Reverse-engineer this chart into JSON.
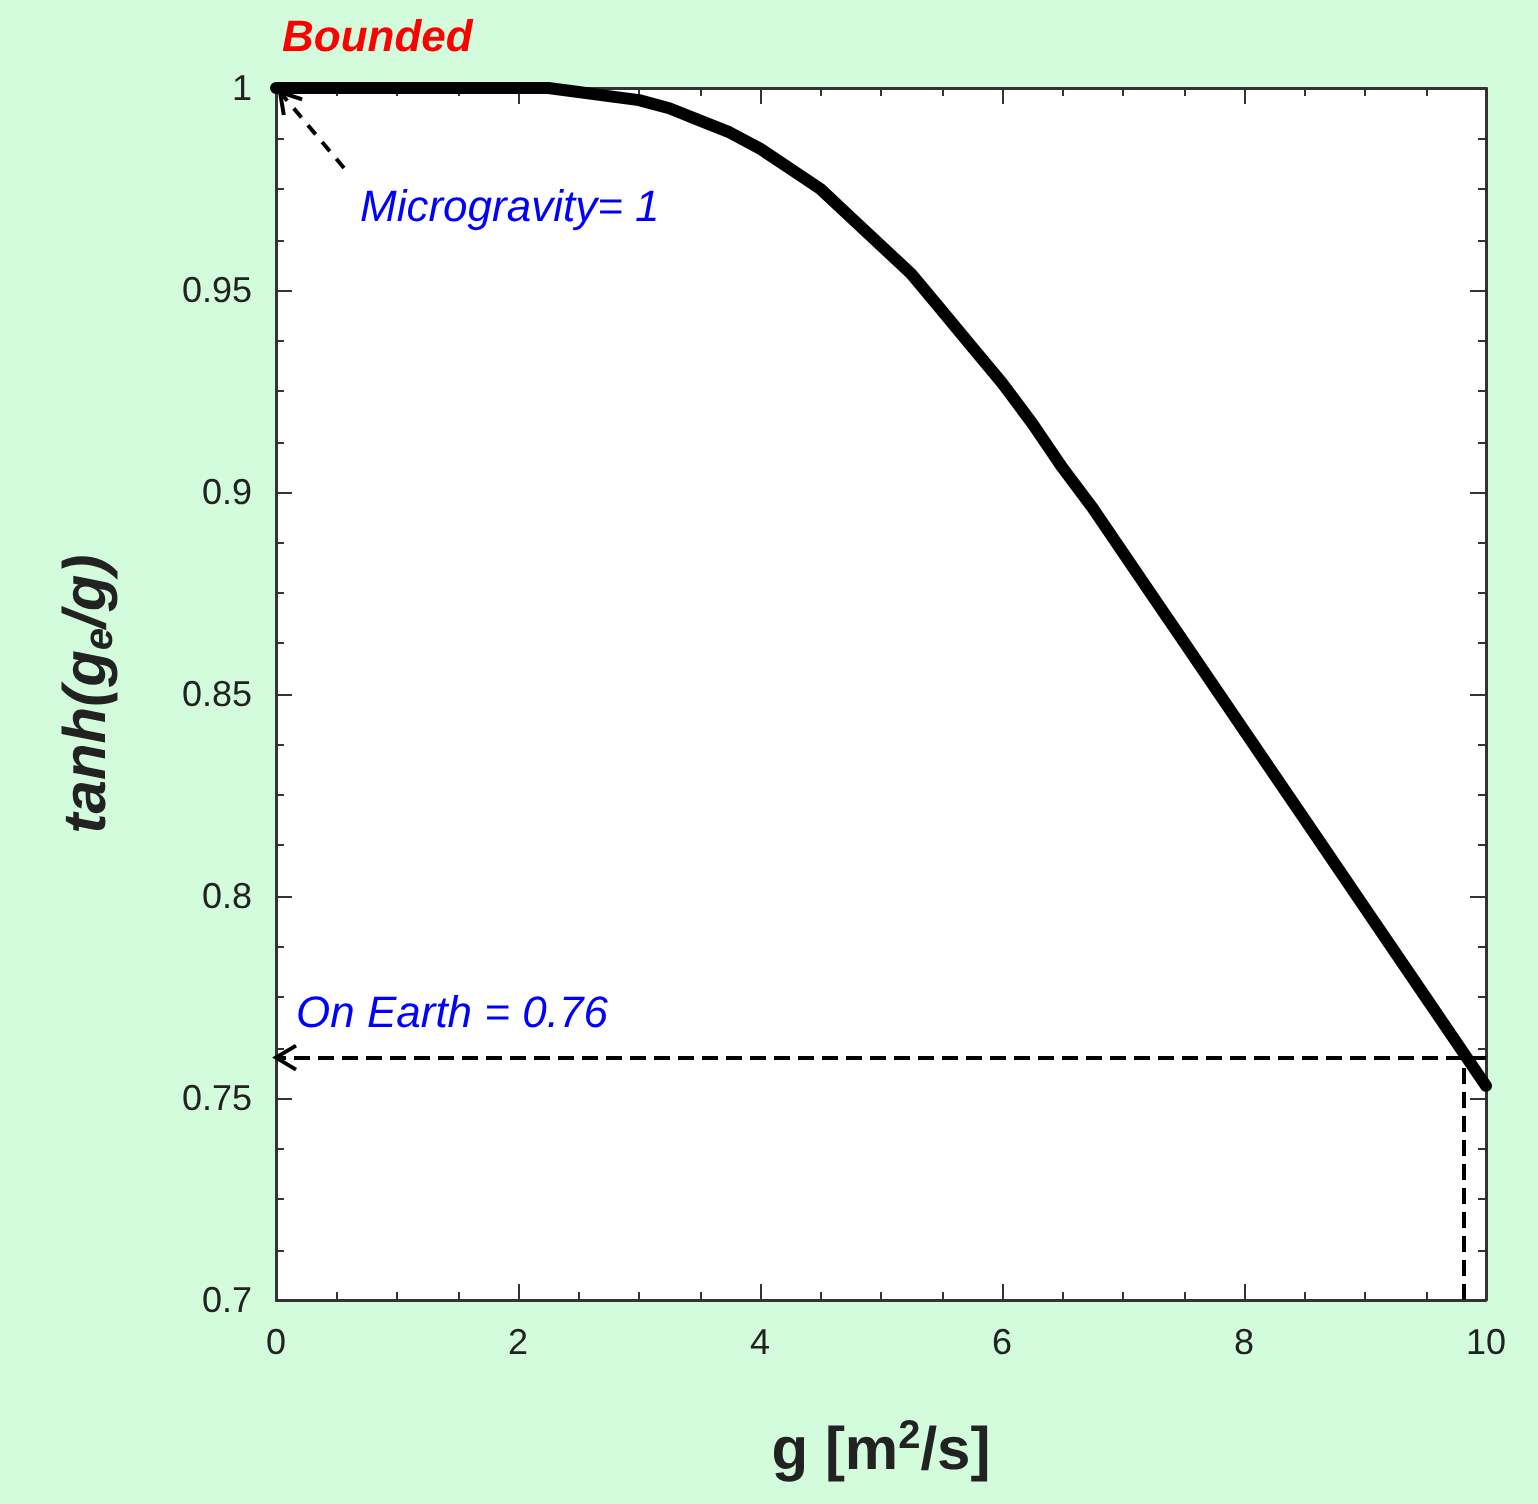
{
  "chart_data": {
    "type": "line",
    "title": "Bounded",
    "xlabel": "g [m$^{2}$/s]",
    "ylabel": "tanh(g$_{e}$/g)",
    "x": [
      0,
      0.5,
      1,
      1.5,
      2,
      2.25,
      2.5,
      2.75,
      3,
      3.25,
      3.5,
      3.75,
      4,
      4.25,
      4.5,
      4.75,
      5,
      5.25,
      5.5,
      5.75,
      6,
      6.25,
      6.5,
      6.75,
      7,
      7.25,
      7.5,
      8,
      8.5,
      9,
      9.5,
      10
    ],
    "series": [
      {
        "color": "#000000",
        "values": [
          1,
          1,
          1,
          1,
          1,
          1,
          0.999,
          0.998,
          0.997,
          0.995,
          0.992,
          0.989,
          0.985,
          0.98,
          0.975,
          0.968,
          0.961,
          0.954,
          0.945,
          0.936,
          0.927,
          0.917,
          0.906,
          0.896,
          0.885,
          0.874,
          0.863,
          0.841,
          0.819,
          0.797,
          0.775,
          0.753
        ]
      }
    ],
    "xlim": [
      0,
      10
    ],
    "xticks": [
      0,
      2,
      4,
      6,
      8,
      10
    ],
    "ylim": [
      0.7,
      1
    ],
    "yticks": [
      0.7,
      0.75,
      0.8,
      0.85,
      0.9,
      0.95,
      1
    ],
    "grid": false,
    "marker": "none",
    "line_style": "solid",
    "annotations": [
      {
        "text": "Microgravity= 1",
        "x": 0,
        "y": 1
      }
    ],
    "ref_lines": [
      {
        "axis": "y",
        "value": 0.76,
        "label": "On Earth = 0.76",
        "color": "#000000",
        "line_style": "dashed"
      },
      {
        "axis": "x",
        "value": 9.81,
        "color": "#000000",
        "line_style": "dashed"
      }
    ]
  }
}
